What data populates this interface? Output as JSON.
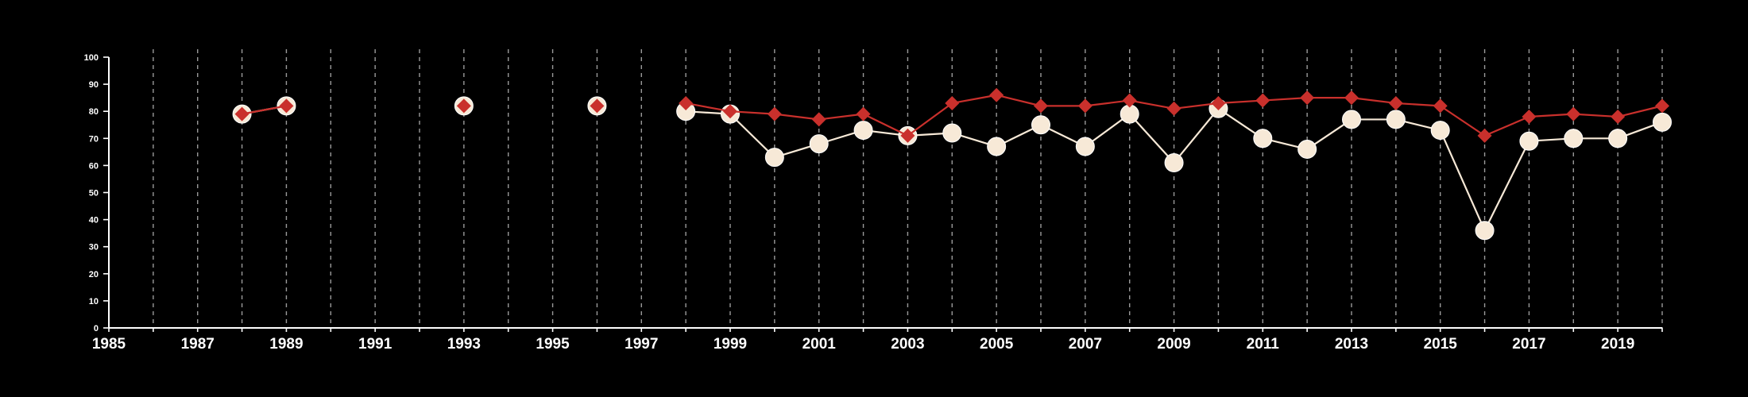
{
  "chart_data": {
    "type": "line",
    "title": "",
    "xlabel": "",
    "ylabel": "",
    "xlim": [
      1985,
      2020
    ],
    "ylim": [
      0,
      100
    ],
    "x_ticks": [
      "1985",
      "1987",
      "1989",
      "1991",
      "1993",
      "1995",
      "1997",
      "1999",
      "2001",
      "2003",
      "2005",
      "2007",
      "2009",
      "2011",
      "2013",
      "2015",
      "2017",
      "2019"
    ],
    "y_ticks": [
      "0",
      "10",
      "20",
      "30",
      "40",
      "50",
      "60",
      "70",
      "80",
      "90",
      "100"
    ],
    "grid": "vertical dashed, yearly",
    "background": "#000000",
    "series": [
      {
        "color": "#f7e9d7",
        "marker": "circle",
        "points": [
          {
            "x": 1988,
            "y": 79
          },
          {
            "x": 1989,
            "y": 82
          },
          {
            "x": 1993,
            "y": 82
          },
          {
            "x": 1996,
            "y": 82
          },
          {
            "x": 1998,
            "y": 80
          },
          {
            "x": 1999,
            "y": 79
          },
          {
            "x": 2000,
            "y": 63
          },
          {
            "x": 2001,
            "y": 68
          },
          {
            "x": 2002,
            "y": 73
          },
          {
            "x": 2003,
            "y": 71
          },
          {
            "x": 2004,
            "y": 72
          },
          {
            "x": 2005,
            "y": 67
          },
          {
            "x": 2006,
            "y": 75
          },
          {
            "x": 2007,
            "y": 67
          },
          {
            "x": 2008,
            "y": 79
          },
          {
            "x": 2009,
            "y": 61
          },
          {
            "x": 2010,
            "y": 81
          },
          {
            "x": 2011,
            "y": 70
          },
          {
            "x": 2012,
            "y": 66
          },
          {
            "x": 2013,
            "y": 77
          },
          {
            "x": 2014,
            "y": 77
          },
          {
            "x": 2015,
            "y": 73
          },
          {
            "x": 2016,
            "y": 36
          },
          {
            "x": 2017,
            "y": 69
          },
          {
            "x": 2018,
            "y": 70
          },
          {
            "x": 2019,
            "y": 70
          },
          {
            "x": 2020,
            "y": 76
          }
        ]
      },
      {
        "color": "#c9302c",
        "marker": "diamond",
        "points": [
          {
            "x": 1988,
            "y": 79
          },
          {
            "x": 1989,
            "y": 82
          },
          {
            "x": 1993,
            "y": 82
          },
          {
            "x": 1996,
            "y": 82
          },
          {
            "x": 1998,
            "y": 83
          },
          {
            "x": 1999,
            "y": 80
          },
          {
            "x": 2000,
            "y": 79
          },
          {
            "x": 2001,
            "y": 77
          },
          {
            "x": 2002,
            "y": 79
          },
          {
            "x": 2003,
            "y": 71
          },
          {
            "x": 2004,
            "y": 83
          },
          {
            "x": 2005,
            "y": 86
          },
          {
            "x": 2006,
            "y": 82
          },
          {
            "x": 2007,
            "y": 82
          },
          {
            "x": 2008,
            "y": 84
          },
          {
            "x": 2009,
            "y": 81
          },
          {
            "x": 2010,
            "y": 83
          },
          {
            "x": 2011,
            "y": 84
          },
          {
            "x": 2012,
            "y": 85
          },
          {
            "x": 2013,
            "y": 85
          },
          {
            "x": 2014,
            "y": 83
          },
          {
            "x": 2015,
            "y": 82
          },
          {
            "x": 2016,
            "y": 71
          },
          {
            "x": 2017,
            "y": 78
          },
          {
            "x": 2018,
            "y": 79
          },
          {
            "x": 2019,
            "y": 78
          },
          {
            "x": 2020,
            "y": 82
          }
        ]
      }
    ]
  }
}
